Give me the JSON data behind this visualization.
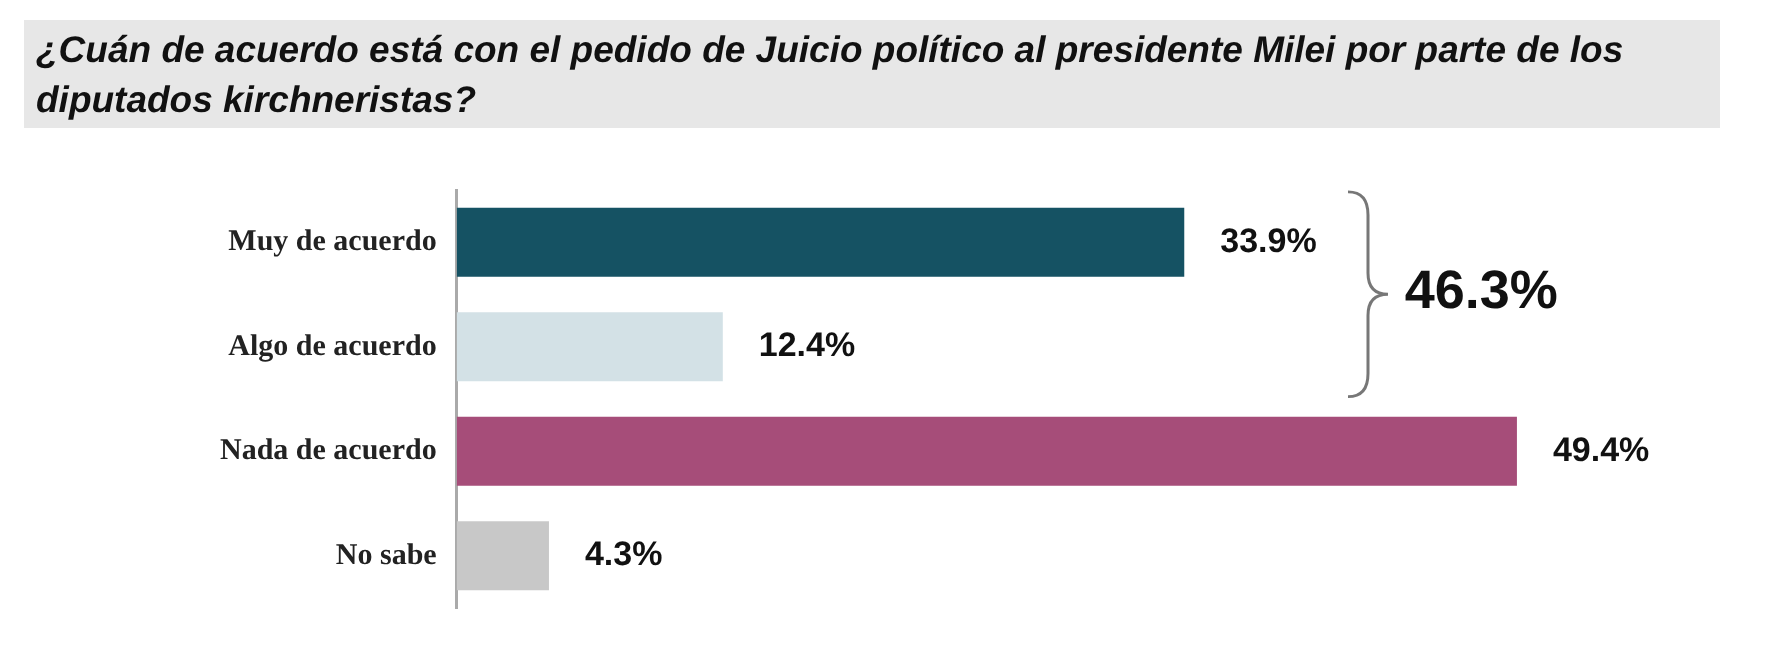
{
  "chart_data": {
    "type": "bar",
    "orientation": "horizontal",
    "title": "¿Cuán de acuerdo está con el pedido de Juicio político al presidente Milei por parte de los diputados kirchneristas?",
    "categories": [
      "Muy de acuerdo",
      "Algo de acuerdo",
      "Nada de acuerdo",
      "No sabe"
    ],
    "values": [
      33.9,
      12.4,
      49.4,
      4.3
    ],
    "colors": [
      "#155263",
      "#d3e1e6",
      "#a64d79",
      "#c8c8c8"
    ],
    "value_labels": [
      "33.9%",
      "12.4%",
      "49.4%",
      "4.3%"
    ],
    "annotations": [
      "46.3%"
    ]
  }
}
